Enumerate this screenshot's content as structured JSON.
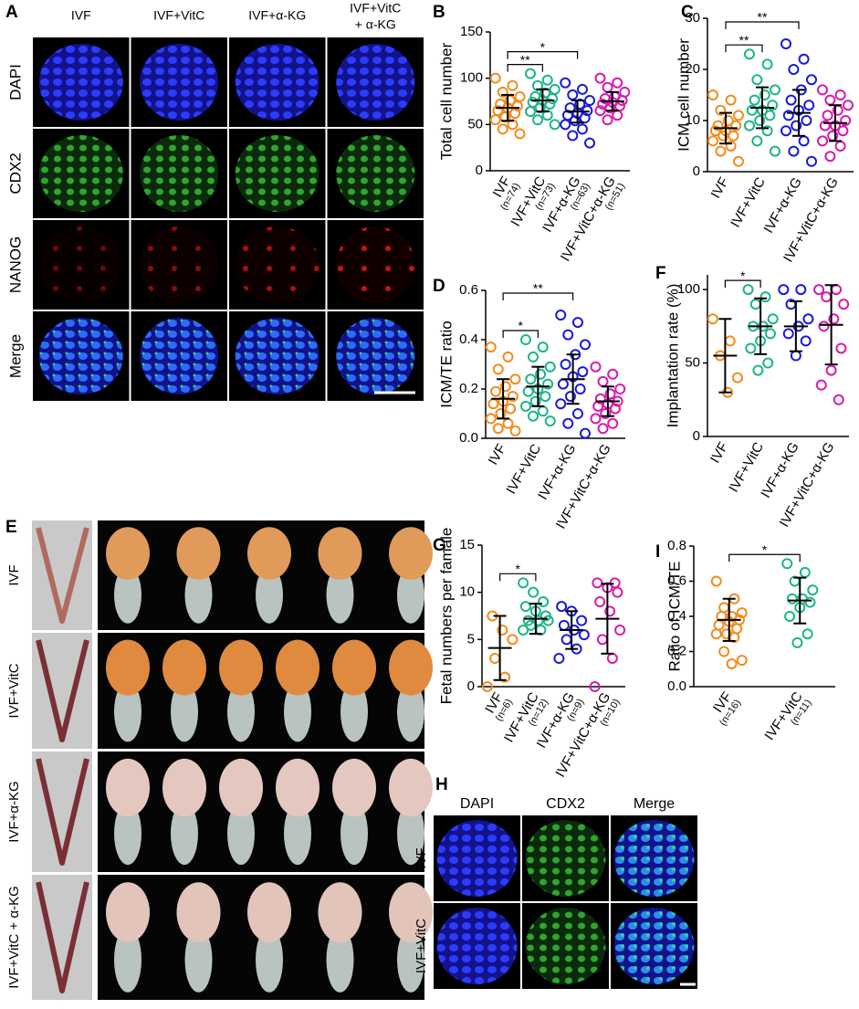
{
  "figure_a": {
    "panel": "A",
    "columns": [
      "IVF",
      "IVF+VitC",
      "IVF+α-KG",
      [
        "IVF+VitC",
        "+ α-KG"
      ]
    ],
    "rows": [
      "DAPI",
      "CDX2",
      "NANOG",
      "Merge"
    ],
    "row_colors": [
      "#1f3bff",
      "#2fb52f",
      "#e01818",
      "#1f6bff"
    ]
  },
  "figure_e": {
    "panel": "E",
    "rows": [
      "IVF",
      "IVF+VitC",
      "IVF+α-KG",
      "IVF+VitC + α-KG"
    ]
  },
  "figure_h": {
    "panel": "H",
    "columns": [
      "DAPI",
      "CDX2",
      "Merge"
    ],
    "column_colors": [
      "#1f3bff",
      "#2fb52f",
      "#1f6bff"
    ],
    "rows": [
      "IVF",
      "IVF+VitC"
    ]
  },
  "chart_data": [
    {
      "panel": "B",
      "type": "scatter",
      "ylabel": "Total cell number",
      "categories": [
        "IVF",
        "IVF+VitC",
        "IVF+α-KG",
        "IVF+VitC+α-KG"
      ],
      "n_labels": [
        "(n=74)",
        "(n=73)",
        "(n=63)",
        "(n=51)"
      ],
      "n_color": "#1db589",
      "ylim": [
        0,
        150
      ],
      "yticks": [
        0,
        50,
        100,
        150
      ],
      "groups": [
        {
          "color": "#f28b1d",
          "points": [
            100,
            92,
            85,
            80,
            76,
            72,
            70,
            68,
            65,
            62,
            58,
            55,
            50,
            45,
            40
          ],
          "mean": 68,
          "sd": 14
        },
        {
          "color": "#1db589",
          "points": [
            105,
            98,
            92,
            88,
            84,
            80,
            78,
            76,
            74,
            72,
            68,
            64,
            60,
            55,
            50
          ],
          "mean": 76,
          "sd": 12
        },
        {
          "color": "#1a1ad6",
          "points": [
            95,
            88,
            82,
            76,
            72,
            68,
            65,
            62,
            60,
            57,
            54,
            50,
            45,
            38,
            30
          ],
          "mean": 64,
          "sd": 12
        },
        {
          "color": "#d61ab0",
          "points": [
            100,
            95,
            90,
            85,
            80,
            78,
            76,
            74,
            72,
            70,
            68,
            65,
            60,
            55
          ],
          "mean": 75,
          "sd": 10
        }
      ],
      "significance": [
        {
          "groups": [
            0,
            1
          ],
          "label": "**"
        },
        {
          "groups": [
            0,
            2
          ],
          "label": "*"
        }
      ]
    },
    {
      "panel": "C",
      "type": "scatter",
      "ylabel": "ICM cell number",
      "categories": [
        "IVF",
        "IVF+VitC",
        "IVF+α-KG",
        "IVF+VitC+α-KG"
      ],
      "ylim": [
        0,
        30
      ],
      "yticks": [
        0,
        10,
        20,
        30
      ],
      "groups": [
        {
          "color": "#f28b1d",
          "points": [
            15,
            14,
            12,
            11,
            10,
            9,
            9,
            8,
            8,
            7,
            7,
            6,
            5,
            4,
            2
          ],
          "mean": 8.5,
          "sd": 3
        },
        {
          "color": "#1db589",
          "points": [
            23,
            21,
            18,
            16,
            15,
            14,
            13,
            12,
            12,
            11,
            10,
            9,
            8,
            6,
            4
          ],
          "mean": 12.5,
          "sd": 4
        },
        {
          "color": "#1a1ad6",
          "points": [
            25,
            22,
            20,
            18,
            16,
            14,
            13,
            12,
            11,
            10,
            9,
            8,
            6,
            4,
            2
          ],
          "mean": 11.5,
          "sd": 4.5
        },
        {
          "color": "#d61ab0",
          "points": [
            16,
            15,
            14,
            13,
            12,
            11,
            10,
            9,
            9,
            8,
            7,
            6,
            5,
            3
          ],
          "mean": 9.5,
          "sd": 3.5
        }
      ],
      "significance": [
        {
          "groups": [
            0,
            1
          ],
          "label": "**"
        },
        {
          "groups": [
            0,
            2
          ],
          "label": "**"
        }
      ]
    },
    {
      "panel": "D",
      "type": "scatter",
      "ylabel": "ICM/TE ratio",
      "categories": [
        "IVF",
        "IVF+VitC",
        "IVF+α-KG",
        "IVF+VitC+α-KG"
      ],
      "ylim": [
        0,
        0.6
      ],
      "yticks": [
        {
          "value": 0,
          "label": "0.0"
        },
        0.2,
        0.4,
        0.6
      ],
      "groups": [
        {
          "color": "#f28b1d",
          "points": [
            0.37,
            0.33,
            0.28,
            0.24,
            0.21,
            0.19,
            0.17,
            0.15,
            0.14,
            0.12,
            0.1,
            0.08,
            0.06,
            0.04,
            0.03
          ],
          "mean": 0.16,
          "sd": 0.08
        },
        {
          "color": "#1db589",
          "points": [
            0.4,
            0.37,
            0.33,
            0.29,
            0.26,
            0.24,
            0.22,
            0.2,
            0.19,
            0.17,
            0.15,
            0.13,
            0.11,
            0.09,
            0.07
          ],
          "mean": 0.21,
          "sd": 0.08
        },
        {
          "color": "#1a1ad6",
          "points": [
            0.5,
            0.47,
            0.42,
            0.38,
            0.34,
            0.3,
            0.27,
            0.25,
            0.22,
            0.2,
            0.17,
            0.14,
            0.1,
            0.06,
            0.02
          ],
          "mean": 0.24,
          "sd": 0.1
        },
        {
          "color": "#d61ab0",
          "points": [
            0.29,
            0.26,
            0.23,
            0.2,
            0.18,
            0.16,
            0.15,
            0.14,
            0.13,
            0.12,
            0.1,
            0.08,
            0.06,
            0.04
          ],
          "mean": 0.15,
          "sd": 0.06
        }
      ],
      "significance": [
        {
          "groups": [
            0,
            1
          ],
          "label": "*"
        },
        {
          "groups": [
            0,
            2
          ],
          "label": "**"
        }
      ]
    },
    {
      "panel": "F",
      "type": "scatter",
      "ylabel": "Implantation rate (%)",
      "categories": [
        "IVF",
        "IVF+VitC",
        "IVF+α-KG",
        "IVF+VitC+α-KG"
      ],
      "ylim": [
        0,
        110
      ],
      "yticks": [
        0,
        50,
        100
      ],
      "groups": [
        {
          "color": "#f28b1d",
          "points": [
            80,
            65,
            55,
            40,
            30
          ],
          "mean": 55,
          "sd": 25
        },
        {
          "color": "#1db589",
          "points": [
            100,
            95,
            90,
            80,
            75,
            75,
            70,
            65,
            60,
            50,
            45
          ],
          "mean": 75,
          "sd": 19
        },
        {
          "color": "#1a1ad6",
          "points": [
            100,
            100,
            90,
            80,
            75,
            70,
            65,
            55
          ],
          "mean": 75,
          "sd": 17
        },
        {
          "color": "#d61ab0",
          "points": [
            100,
            100,
            95,
            90,
            80,
            75,
            60,
            45,
            35,
            25
          ],
          "mean": 76,
          "sd": 27
        }
      ],
      "significance": [
        {
          "groups": [
            0,
            1
          ],
          "label": "*"
        }
      ]
    },
    {
      "panel": "G",
      "type": "scatter",
      "ylabel": "Fetal numbers per famale",
      "categories": [
        "IVF",
        "IVF+VitC",
        "IVF+α-KG",
        "IVF+VitC+α-KG"
      ],
      "n_labels": [
        "(n=6)",
        "(n=12)",
        "(n=9)",
        "(n=10)"
      ],
      "n_color": "#1db589",
      "ylim": [
        0,
        15
      ],
      "yticks": [
        0,
        5,
        10,
        15
      ],
      "groups": [
        {
          "color": "#f28b1d",
          "points": [
            0,
            1,
            3,
            5,
            6,
            7.5
          ],
          "mean": 4.1,
          "sd": 3.4
        },
        {
          "color": "#1db589",
          "points": [
            6,
            6,
            6.5,
            7,
            7,
            7,
            7.5,
            8,
            8.5,
            9,
            10,
            11
          ],
          "mean": 7.2,
          "sd": 1.6
        },
        {
          "color": "#1a1ad6",
          "points": [
            3,
            4,
            5,
            5.5,
            6,
            6.5,
            7,
            8,
            8.5
          ],
          "mean": 6,
          "sd": 2
        },
        {
          "color": "#d61ab0",
          "points": [
            0,
            3,
            5,
            6,
            8,
            9,
            10,
            10.5,
            11,
            11
          ],
          "mean": 7.2,
          "sd": 3.7
        }
      ],
      "significance": [
        {
          "groups": [
            0,
            1
          ],
          "label": "*"
        }
      ]
    },
    {
      "panel": "I",
      "type": "scatter",
      "ylabel": "Ratio of ICM/TE",
      "categories": [
        "IVF",
        "IVF+VitC"
      ],
      "n_labels": [
        "(n=16)",
        "(n=11)"
      ],
      "n_color": "#1db589",
      "ylim": [
        0,
        0.8
      ],
      "yticks": [
        {
          "value": 0,
          "label": "0.0"
        },
        0.2,
        0.4,
        0.6,
        0.8
      ],
      "groups": [
        {
          "color": "#f28b1d",
          "points": [
            0.6,
            0.5,
            0.45,
            0.42,
            0.4,
            0.4,
            0.38,
            0.37,
            0.35,
            0.33,
            0.3,
            0.3,
            0.28,
            0.2,
            0.15,
            0.13
          ],
          "mean": 0.38,
          "sd": 0.12
        },
        {
          "color": "#1db589",
          "points": [
            0.7,
            0.65,
            0.6,
            0.55,
            0.5,
            0.5,
            0.48,
            0.45,
            0.4,
            0.3,
            0.25
          ],
          "mean": 0.49,
          "sd": 0.13
        }
      ],
      "significance": [
        {
          "groups": [
            0,
            1
          ],
          "label": "*"
        }
      ]
    }
  ]
}
